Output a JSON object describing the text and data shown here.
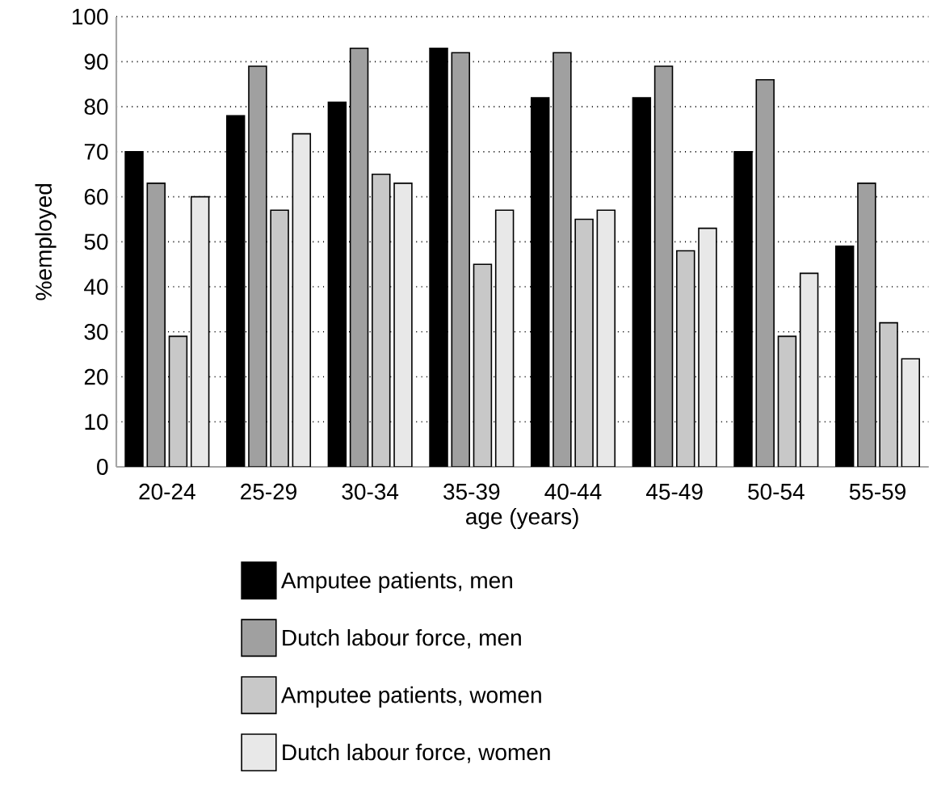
{
  "chart_data": {
    "type": "bar",
    "xlabel": "age (years)",
    "ylabel": "%employed",
    "categories": [
      "20-24",
      "25-29",
      "30-34",
      "35-39",
      "40-44",
      "45-49",
      "50-54",
      "55-59"
    ],
    "series": [
      {
        "name": "Amputee patients, men",
        "color": "#000000",
        "values": [
          70,
          78,
          81,
          93,
          82,
          82,
          70,
          49
        ]
      },
      {
        "name": "Dutch labour force, men",
        "color": "#a0a0a0",
        "values": [
          63,
          89,
          93,
          92,
          92,
          89,
          86,
          63
        ]
      },
      {
        "name": "Amputee patients, women",
        "color": "#c8c8c8",
        "values": [
          29,
          57,
          65,
          45,
          55,
          48,
          29,
          32
        ]
      },
      {
        "name": "Dutch labour force, women",
        "color": "#e8e8e8",
        "values": [
          60,
          74,
          63,
          57,
          57,
          53,
          43,
          24
        ]
      }
    ],
    "ylim": [
      0,
      100
    ],
    "yticks": [
      0,
      10,
      20,
      30,
      40,
      50,
      60,
      70,
      80,
      90,
      100
    ],
    "grid": "y",
    "legend": "bottom"
  }
}
